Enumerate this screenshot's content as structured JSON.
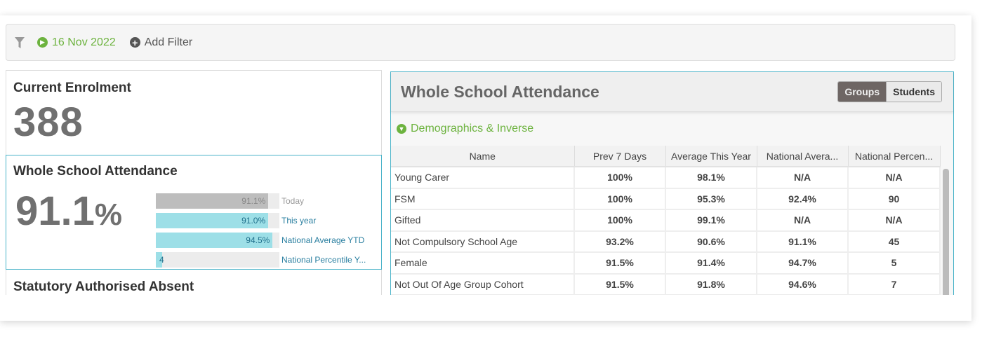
{
  "filter_bar": {
    "date": "16 Nov 2022",
    "add_filter": "Add Filter"
  },
  "enrolment": {
    "title": "Current Enrolment",
    "value": "388"
  },
  "attendance": {
    "title": "Whole School Attendance",
    "value": "91.1",
    "unit": "%",
    "bars": [
      {
        "label": "Today",
        "value_text": "91.1%",
        "fraction": 0.911,
        "color": "#bdbdbd",
        "label_color": "#999"
      },
      {
        "label": "This year",
        "value_text": "91.0%",
        "fraction": 0.91,
        "color": "#9ddfe7",
        "label_color": "#2a7fa0"
      },
      {
        "label": "National Average YTD",
        "value_text": "94.5%",
        "fraction": 0.945,
        "color": "#9ddfe7",
        "label_color": "#2a7fa0"
      },
      {
        "label": "National Percentile Y...",
        "value_text": "4",
        "fraction": 0.04,
        "color": "#9ddfe7",
        "label_color": "#2a7fa0"
      }
    ]
  },
  "statutory": {
    "title": "Statutory Authorised Absent"
  },
  "panel": {
    "title": "Whole School Attendance",
    "toggle": [
      "Groups",
      "Students"
    ],
    "active": "Groups",
    "section": "Demographics & Inverse",
    "columns": [
      "Name",
      "Prev 7 Days",
      "Average This Year",
      "National Avera...",
      "National Percen..."
    ],
    "rows": [
      [
        "Young Carer",
        "100%",
        "98.1%",
        "N/A",
        "N/A"
      ],
      [
        "FSM",
        "100%",
        "95.3%",
        "92.4%",
        "90"
      ],
      [
        "Gifted",
        "100%",
        "99.1%",
        "N/A",
        "N/A"
      ],
      [
        "Not Compulsory School Age",
        "93.2%",
        "90.6%",
        "91.1%",
        "45"
      ],
      [
        "Female",
        "91.5%",
        "91.4%",
        "94.7%",
        "5"
      ],
      [
        "Not Out Of Age Group Cohort",
        "91.5%",
        "91.8%",
        "94.6%",
        "7"
      ]
    ]
  },
  "colors": {
    "accent_green": "#6db33f",
    "teal_border": "#4ab3c9"
  }
}
